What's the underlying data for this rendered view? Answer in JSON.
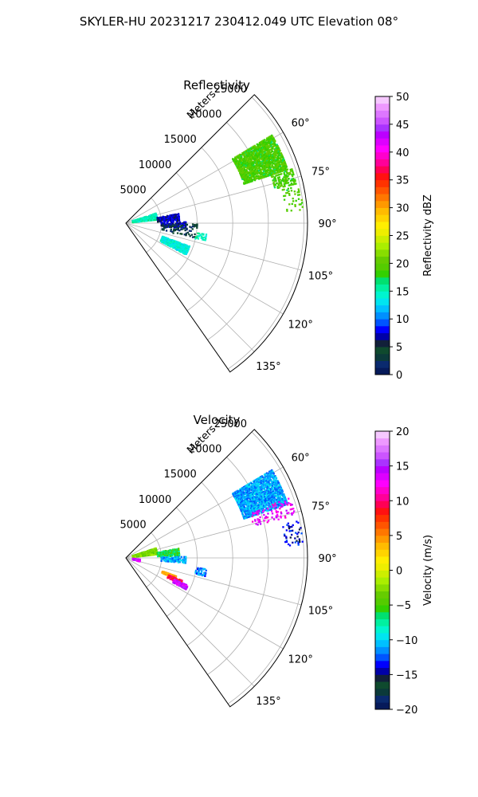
{
  "figure": {
    "suptitle": "SKYLER-HU  20231217  230412.049 UTC Elevation 08°"
  },
  "chart_data": [
    {
      "type": "polar-sector",
      "title": "Reflectivity",
      "range_label": "Meters",
      "range_ticks": [
        "5000",
        "10000",
        "15000",
        "20000",
        "25000"
      ],
      "range_tick_values": [
        5000,
        10000,
        15000,
        20000,
        25000
      ],
      "range_max": 25500,
      "azimuth_ticks": [
        "60°",
        "75°",
        "90°",
        "105°",
        "120°",
        "135°"
      ],
      "azimuth_tick_values": [
        60,
        75,
        90,
        105,
        120,
        135
      ],
      "azimuth_range": [
        45,
        145
      ],
      "colorbar": {
        "label": "Reflectivity dBZ",
        "ticks": [
          "0",
          "5",
          "10",
          "15",
          "20",
          "25",
          "30",
          "35",
          "40",
          "45",
          "50"
        ],
        "tick_values": [
          0,
          5,
          10,
          15,
          20,
          25,
          30,
          35,
          40,
          45,
          50
        ],
        "vmin": 0,
        "vmax": 50,
        "colors": [
          "#061a5a",
          "#0a2a6e",
          "#0b3a3a",
          "#0f4a2e",
          "#12203a",
          "#0000a8",
          "#0000ff",
          "#0055ff",
          "#0090ff",
          "#00c0ff",
          "#00e5f0",
          "#00f5cf",
          "#00f0a0",
          "#00e070",
          "#33d000",
          "#55cc00",
          "#66cc00",
          "#88dd00",
          "#aaee00",
          "#ccee00",
          "#eeee00",
          "#ffee00",
          "#ffd400",
          "#ffbb00",
          "#ff9900",
          "#ff7700",
          "#ff5500",
          "#ff3300",
          "#ff1111",
          "#ff0055",
          "#ff0099",
          "#ff00cc",
          "#ff00ff",
          "#dd00ff",
          "#bb00ff",
          "#aa33ff",
          "#cc55ff",
          "#dd77ff",
          "#ee99ff",
          "#f6c8ff"
        ]
      },
      "echo_regions": [
        {
          "az": [
            59,
            72
          ],
          "r": [
            17500,
            24000
          ],
          "value": 19,
          "density": 0.85
        },
        {
          "az": [
            72,
            77
          ],
          "r": [
            21500,
            24500
          ],
          "value": 19,
          "density": 0.55
        },
        {
          "az": [
            72,
            84
          ],
          "r": [
            1000,
            4500
          ],
          "value": 15,
          "density": 0.75
        },
        {
          "az": [
            80,
            88
          ],
          "r": [
            4500,
            7500
          ],
          "value": 7,
          "density": 0.55
        },
        {
          "az": [
            89,
            95
          ],
          "r": [
            5000,
            8500
          ],
          "value": 7,
          "density": 0.45
        },
        {
          "az": [
            110,
            118
          ],
          "r": [
            5500,
            9500
          ],
          "value": 14,
          "density": 0.75
        },
        {
          "az": [
            98,
            103
          ],
          "r": [
            10000,
            11500
          ],
          "value": 15,
          "density": 0.35
        },
        {
          "az": [
            78,
            86
          ],
          "r": [
            22500,
            25000
          ],
          "value": 19,
          "density": 0.15
        },
        {
          "az": [
            91,
            102
          ],
          "r": [
            5000,
            10000
          ],
          "value": 3,
          "density": 0.12
        }
      ]
    },
    {
      "type": "polar-sector",
      "title": "Velocity",
      "range_label": "Meters",
      "range_ticks": [
        "5000",
        "10000",
        "15000",
        "20000",
        "25000"
      ],
      "range_tick_values": [
        5000,
        10000,
        15000,
        20000,
        25000
      ],
      "range_max": 25500,
      "azimuth_ticks": [
        "60°",
        "75°",
        "90°",
        "105°",
        "120°",
        "135°"
      ],
      "azimuth_tick_values": [
        60,
        75,
        90,
        105,
        120,
        135
      ],
      "azimuth_range": [
        45,
        145
      ],
      "colorbar": {
        "label": "Velocity (m/s)",
        "ticks": [
          "−20",
          "−15",
          "−10",
          "−5",
          "0",
          "5",
          "10",
          "15",
          "20"
        ],
        "tick_values": [
          -20,
          -15,
          -10,
          -5,
          0,
          5,
          10,
          15,
          20
        ],
        "vmin": -20,
        "vmax": 20,
        "colors": [
          "#061a5a",
          "#0a2a6e",
          "#0b3a3a",
          "#0f4a2e",
          "#12203a",
          "#0000a8",
          "#0000ff",
          "#0055ff",
          "#0090ff",
          "#00c0ff",
          "#00e5f0",
          "#00f5cf",
          "#00f0a0",
          "#00e070",
          "#33d000",
          "#55cc00",
          "#66cc00",
          "#88dd00",
          "#aaee00",
          "#ccee00",
          "#eeee00",
          "#ffee00",
          "#ffd400",
          "#ffbb00",
          "#ff9900",
          "#ff7700",
          "#ff5500",
          "#ff3300",
          "#ff1111",
          "#ff0055",
          "#ff0099",
          "#ff00cc",
          "#ff00ff",
          "#dd00ff",
          "#bb00ff",
          "#aa33ff",
          "#cc55ff",
          "#dd77ff",
          "#ee99ff",
          "#f6c8ff"
        ]
      },
      "echo_regions": [
        {
          "az": [
            59,
            72
          ],
          "r": [
            17500,
            24000
          ],
          "value": -11,
          "density": 0.85
        },
        {
          "az": [
            70,
            76
          ],
          "r": [
            18500,
            24500
          ],
          "value": 13,
          "density": 0.18
        },
        {
          "az": [
            72,
            84
          ],
          "r": [
            1000,
            4500
          ],
          "value": -3,
          "density": 0.75
        },
        {
          "az": [
            80,
            88
          ],
          "r": [
            4500,
            7500
          ],
          "value": -6,
          "density": 0.55
        },
        {
          "az": [
            89,
            95
          ],
          "r": [
            5000,
            8500
          ],
          "value": -11,
          "density": 0.45
        },
        {
          "az": [
            110,
            113
          ],
          "r": [
            5500,
            7500
          ],
          "value": 4,
          "density": 0.8
        },
        {
          "az": [
            112,
            116
          ],
          "r": [
            6500,
            8500
          ],
          "value": 9,
          "density": 0.8
        },
        {
          "az": [
            114,
            118
          ],
          "r": [
            7500,
            9500
          ],
          "value": 14,
          "density": 0.75
        },
        {
          "az": [
            98,
            103
          ],
          "r": [
            10000,
            11500
          ],
          "value": -12,
          "density": 0.35
        },
        {
          "az": [
            95,
            105
          ],
          "r": [
            1000,
            2000
          ],
          "value": 14,
          "density": 0.4
        },
        {
          "az": [
            78,
            86
          ],
          "r": [
            22500,
            25000
          ],
          "value": -14,
          "density": 0.15
        }
      ]
    }
  ]
}
